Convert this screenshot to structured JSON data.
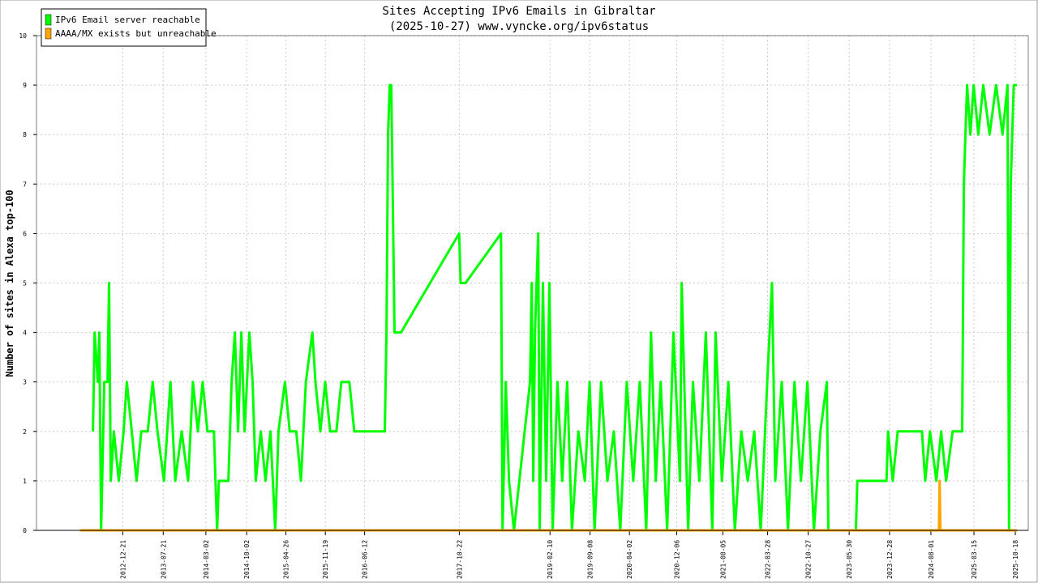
{
  "chart_data": {
    "type": "line",
    "title": "Sites Accepting IPv6 Emails in Gibraltar",
    "subtitle": "(2025-10-27) www.vyncke.org/ipv6status",
    "y_label": "Number of sites in Alexa top-100",
    "ylim": [
      0,
      10
    ],
    "yticks": [
      0,
      1,
      2,
      3,
      4,
      5,
      6,
      7,
      8,
      9,
      10
    ],
    "xlim": [
      "2011-09-25",
      "2025-12-25"
    ],
    "xticks": [
      "2012-12-21",
      "2013-07-21",
      "2014-03-02",
      "2014-10-02",
      "2015-04-26",
      "2015-11-19",
      "2016-06-12",
      "2017-10-22",
      "2019-02-10",
      "2019-09-08",
      "2020-04-02",
      "2020-12-06",
      "2021-08-05",
      "2022-03-28",
      "2022-10-27",
      "2023-05-30",
      "2023-12-28",
      "2024-08-01",
      "2025-03-15",
      "2025-10-18"
    ],
    "grid": true,
    "legend": "top-left",
    "series": [
      {
        "name": "IPv6 Email server reachable",
        "color": "#00ff00",
        "x": [
          "2012-07-17",
          "2012-07-26",
          "2012-08-12",
          "2012-08-20",
          "2012-08-29",
          "2012-09-15",
          "2012-10-02",
          "2012-10-10",
          "2012-10-19",
          "2012-11-04",
          "2012-11-30",
          "2012-12-25",
          "2013-01-11",
          "2013-02-06",
          "2013-03-03",
          "2013-03-28",
          "2013-05-01",
          "2013-05-27",
          "2013-06-21",
          "2013-07-25",
          "2013-08-28",
          "2013-09-22",
          "2013-10-26",
          "2013-11-29",
          "2013-12-24",
          "2014-01-19",
          "2014-02-13",
          "2014-03-10",
          "2014-04-13",
          "2014-04-30",
          "2014-05-09",
          "2014-06-28",
          "2014-07-15",
          "2014-08-01",
          "2014-08-18",
          "2014-09-04",
          "2014-09-21",
          "2014-10-16",
          "2014-11-02",
          "2014-11-19",
          "2014-12-15",
          "2015-01-09",
          "2015-02-04",
          "2015-03-01",
          "2015-03-18",
          "2015-04-21",
          "2015-05-16",
          "2015-06-19",
          "2015-07-14",
          "2015-08-09",
          "2015-09-12",
          "2015-09-28",
          "2015-10-24",
          "2015-11-18",
          "2015-12-14",
          "2016-01-16",
          "2016-02-11",
          "2016-03-24",
          "2016-04-19",
          "2016-09-26",
          "2016-10-05",
          "2016-10-13",
          "2016-10-22",
          "2016-10-30",
          "2016-11-16",
          "2016-12-20",
          "2017-10-21",
          "2017-10-29",
          "2017-11-24",
          "2018-05-29",
          "2018-06-06",
          "2018-06-23",
          "2018-07-10",
          "2018-08-05",
          "2018-10-28",
          "2018-11-06",
          "2018-11-14",
          "2018-11-23",
          "2018-12-10",
          "2018-12-18",
          "2019-01-04",
          "2019-01-21",
          "2019-02-07",
          "2019-02-24",
          "2019-03-21",
          "2019-04-15",
          "2019-05-11",
          "2019-06-05",
          "2019-07-09",
          "2019-08-12",
          "2019-09-06",
          "2019-10-02",
          "2019-11-05",
          "2019-12-08",
          "2020-01-11",
          "2020-02-14",
          "2020-03-19",
          "2020-04-22",
          "2020-05-26",
          "2020-06-29",
          "2020-07-24",
          "2020-08-18",
          "2020-09-13",
          "2020-10-17",
          "2020-11-19",
          "2020-12-23",
          "2021-01-01",
          "2021-02-04",
          "2021-03-01",
          "2021-04-04",
          "2021-05-08",
          "2021-06-11",
          "2021-06-28",
          "2021-07-31",
          "2021-09-03",
          "2021-10-07",
          "2021-11-10",
          "2021-12-14",
          "2022-01-17",
          "2022-02-20",
          "2022-03-26",
          "2022-04-20",
          "2022-05-07",
          "2022-06-10",
          "2022-07-13",
          "2022-08-16",
          "2022-09-19",
          "2022-10-23",
          "2022-11-26",
          "2022-12-30",
          "2023-02-02",
          "2023-02-10",
          "2023-07-04",
          "2023-07-12",
          "2023-12-12",
          "2023-12-20",
          "2024-01-14",
          "2024-02-09",
          "2024-06-15",
          "2024-07-02",
          "2024-07-27",
          "2024-08-30",
          "2024-09-24",
          "2024-10-20",
          "2024-11-23",
          "2025-01-12",
          "2025-01-21",
          "2025-01-29",
          "2025-02-07",
          "2025-02-24",
          "2025-03-13",
          "2025-04-07",
          "2025-05-03",
          "2025-06-05",
          "2025-07-09",
          "2025-08-12",
          "2025-09-07",
          "2025-09-15",
          "2025-09-24",
          "2025-10-10",
          "2025-10-27"
        ],
        "values": [
          2,
          4,
          3,
          4,
          0,
          3,
          3,
          5,
          1,
          2,
          1,
          2,
          3,
          2,
          1,
          2,
          2,
          3,
          2,
          1,
          3,
          1,
          2,
          1,
          3,
          2,
          3,
          2,
          2,
          0,
          1,
          1,
          3,
          4,
          2,
          4,
          2,
          4,
          3,
          1,
          2,
          1,
          2,
          0,
          2,
          3,
          2,
          2,
          1,
          3,
          4,
          3,
          2,
          3,
          2,
          2,
          3,
          3,
          2,
          2,
          4,
          8,
          9,
          9,
          4,
          4,
          6,
          5,
          5,
          6,
          0,
          3,
          1,
          0,
          3,
          5,
          1,
          4,
          6,
          0,
          5,
          1,
          5,
          0,
          3,
          1,
          3,
          0,
          2,
          1,
          3,
          0,
          3,
          1,
          2,
          0,
          3,
          1,
          3,
          0,
          4,
          1,
          3,
          0,
          4,
          1,
          5,
          0,
          3,
          1,
          4,
          0,
          4,
          1,
          3,
          0,
          2,
          1,
          2,
          0,
          3,
          5,
          1,
          3,
          0,
          3,
          1,
          3,
          0,
          2,
          3,
          0,
          0,
          1,
          1,
          2,
          1,
          2,
          2,
          1,
          2,
          1,
          2,
          1,
          2,
          2,
          7,
          8,
          9,
          8,
          9,
          8,
          9,
          8,
          9,
          8,
          9,
          0,
          7,
          9,
          9
        ]
      },
      {
        "name": "AAAA/MX exists but unreachable",
        "color": "#ffa500",
        "x": [
          "2012-05-11",
          "2024-09-12",
          "2024-09-16",
          "2024-09-20",
          "2025-10-27"
        ],
        "values": [
          0,
          0,
          1,
          0,
          0
        ]
      }
    ]
  }
}
